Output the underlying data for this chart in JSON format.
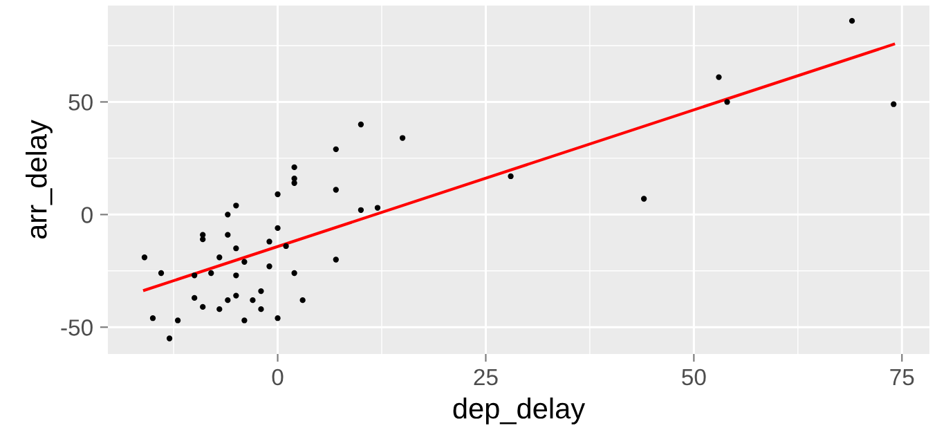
{
  "chart_data": {
    "type": "scatter",
    "xlabel": "dep_delay",
    "ylabel": "arr_delay",
    "xlim": [
      -20.4,
      78.3
    ],
    "ylim": [
      -61.9,
      92.8
    ],
    "xticks": [
      0,
      25,
      50,
      75
    ],
    "yticks": [
      {
        "value": -50,
        "label": "-50"
      },
      0,
      50
    ],
    "grid": true,
    "series": [
      {
        "marker": "circle",
        "color": "#000000",
        "x": [
          -16,
          -14,
          -15,
          -13,
          -12,
          -10,
          -10,
          -9,
          -9,
          -9,
          -8,
          -7,
          -7,
          -6,
          -6,
          -6,
          -5,
          -5,
          -5,
          -5,
          -4,
          -4,
          -3,
          -2,
          -2,
          -1,
          -1,
          0,
          0,
          0,
          1,
          2,
          2,
          2,
          2,
          3,
          7,
          7,
          7,
          10,
          10,
          12,
          15,
          28,
          44,
          53,
          54,
          69,
          74
        ],
        "values": [
          -19,
          -26,
          -46,
          -55,
          -47,
          -27,
          -37,
          -9,
          -11,
          -41,
          -26,
          -19,
          -42,
          0,
          -9,
          -38,
          4,
          -15,
          -27,
          -36,
          -21,
          -47,
          -38,
          -34,
          -42,
          -12,
          -23,
          9,
          -6,
          -46,
          -14,
          21,
          16,
          14,
          -26,
          -38,
          29,
          11,
          -20,
          40,
          2,
          3,
          34,
          17,
          7,
          61,
          50,
          86,
          49
        ]
      },
      {
        "type": "line",
        "color": "#ff0000",
        "x": [
          -16,
          74
        ],
        "values": [
          -33.6,
          75.6
        ],
        "line_style": "solid"
      }
    ]
  }
}
